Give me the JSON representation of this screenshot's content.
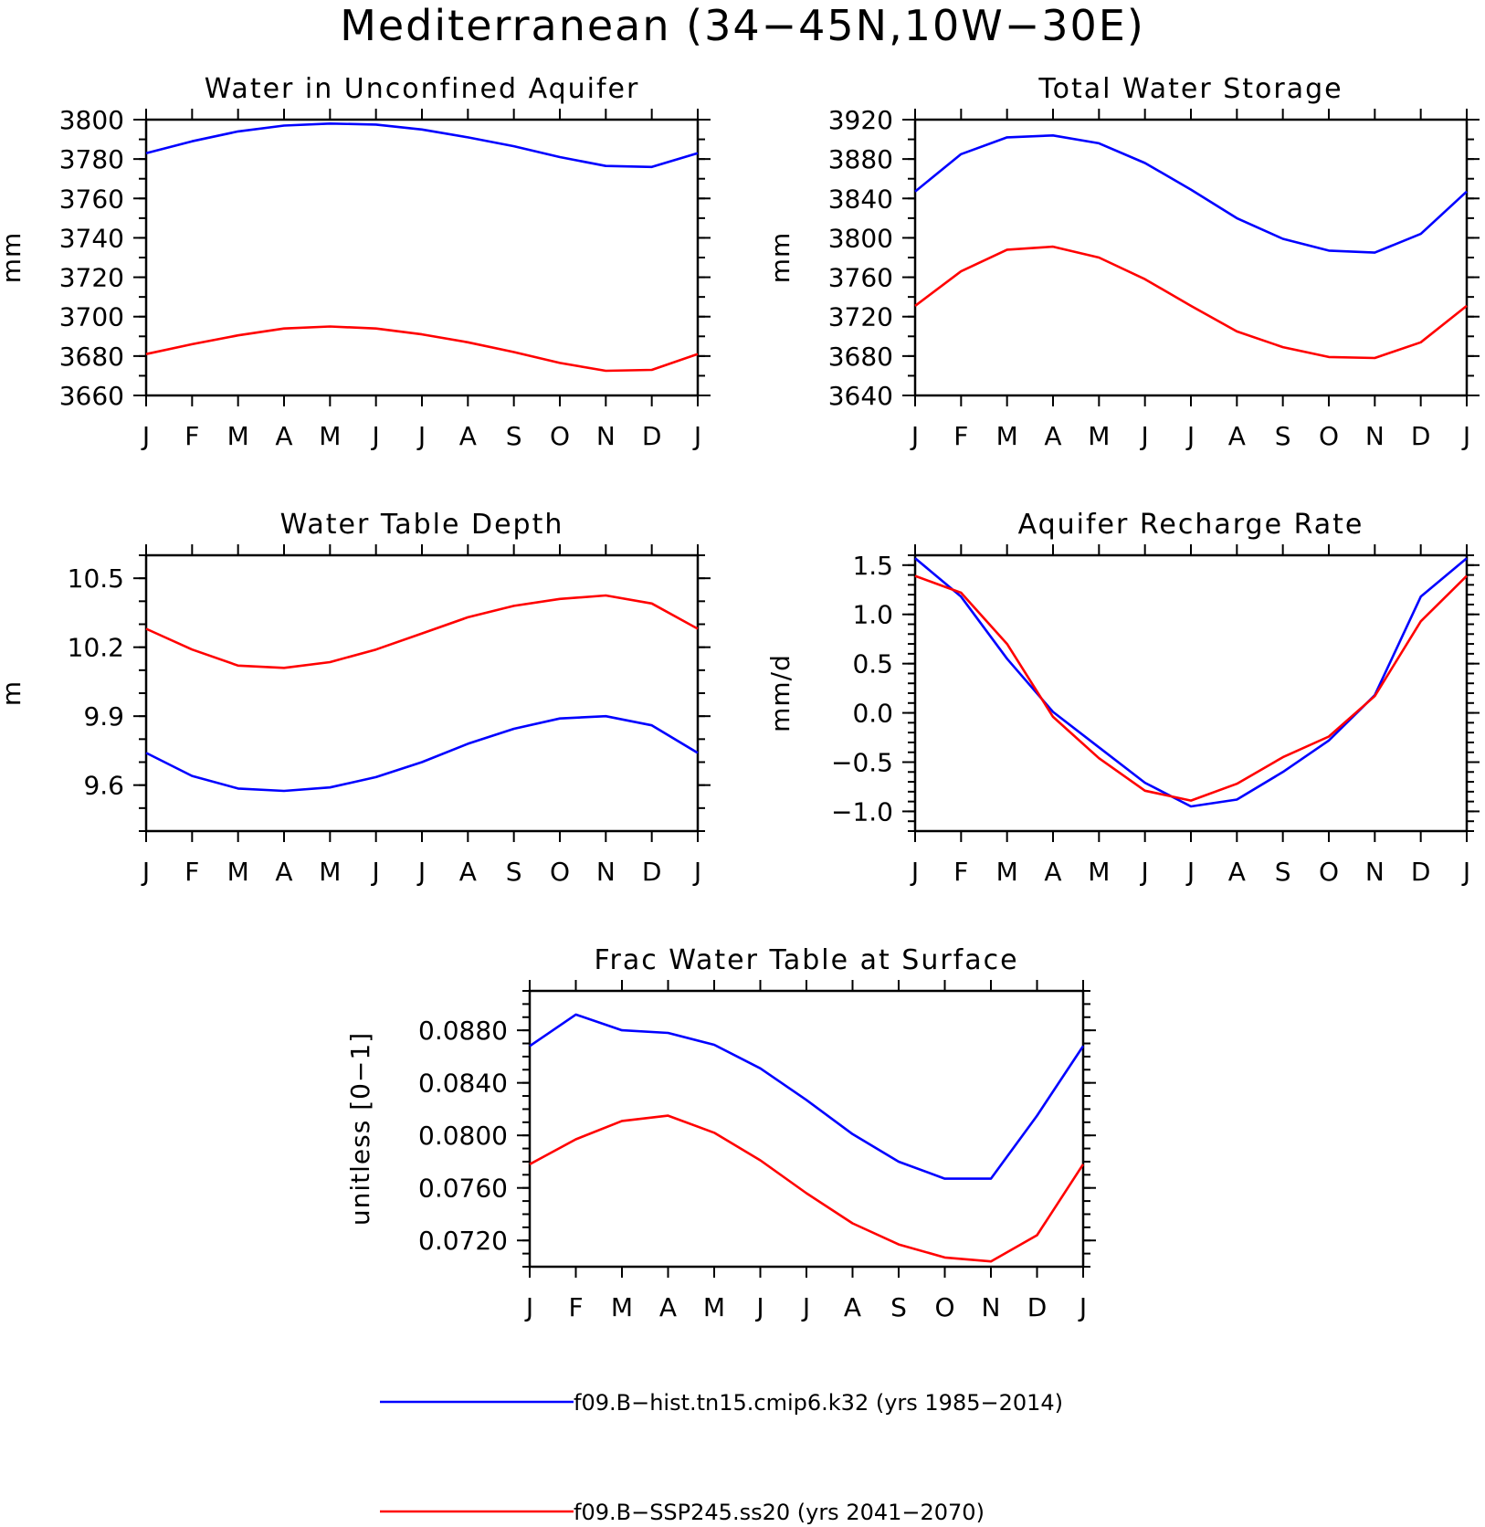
{
  "figure": {
    "title": "Mediterranean (34−45N,10W−30E)",
    "month_labels": [
      "J",
      "F",
      "M",
      "A",
      "M",
      "J",
      "J",
      "A",
      "S",
      "O",
      "N",
      "D",
      "J"
    ],
    "colors": {
      "hist": "#0000ff",
      "future": "#ff0000"
    }
  },
  "legend": [
    {
      "label": "f09.B−hist.tn15.cmip6.k32 (yrs 1985−2014)",
      "color": "#0000ff"
    },
    {
      "label": "f09.B−SSP245.ss20 (yrs 2041−2070)",
      "color": "#ff0000"
    }
  ],
  "chart_data": [
    {
      "type": "line",
      "title": "Water in Unconfined Aquifer",
      "ylabel": "mm",
      "ylim": [
        3660,
        3800
      ],
      "yticks": [
        3660,
        3680,
        3700,
        3720,
        3740,
        3760,
        3780,
        3800
      ],
      "ytick_labels": [
        "3660",
        "3680",
        "3700",
        "3720",
        "3740",
        "3760",
        "3780",
        "3800"
      ],
      "x": [
        "J",
        "F",
        "M",
        "A",
        "M",
        "J",
        "J",
        "A",
        "S",
        "O",
        "N",
        "D",
        "J"
      ],
      "series": [
        {
          "values": [
            3783,
            3789,
            3794,
            3797,
            3798,
            3797.5,
            3795,
            3791,
            3786.5,
            3781,
            3776.5,
            3776,
            3783
          ]
        },
        {
          "values": [
            3681,
            3686,
            3690.5,
            3694,
            3695,
            3694,
            3691,
            3687,
            3682,
            3676.5,
            3672.5,
            3673,
            3681
          ]
        }
      ]
    },
    {
      "type": "line",
      "title": "Total Water Storage",
      "ylabel": "mm",
      "ylim": [
        3640,
        3920
      ],
      "yticks": [
        3640,
        3680,
        3720,
        3760,
        3800,
        3840,
        3880,
        3920
      ],
      "ytick_labels": [
        "3640",
        "3680",
        "3720",
        "3760",
        "3800",
        "3840",
        "3880",
        "3920"
      ],
      "x": [
        "J",
        "F",
        "M",
        "A",
        "M",
        "J",
        "J",
        "A",
        "S",
        "O",
        "N",
        "D",
        "J"
      ],
      "series": [
        {
          "values": [
            3847,
            3885,
            3902,
            3904,
            3896,
            3876,
            3849,
            3820,
            3799,
            3787,
            3785,
            3804,
            3847
          ]
        },
        {
          "values": [
            3731,
            3766,
            3788,
            3791,
            3780,
            3758,
            3731,
            3705,
            3689,
            3679,
            3678,
            3694,
            3731
          ]
        }
      ]
    },
    {
      "type": "line",
      "title": "Water Table Depth",
      "ylabel": "m",
      "ylim": [
        9.4,
        10.6
      ],
      "yticks": [
        9.6,
        9.9,
        10.2,
        10.5
      ],
      "ytick_labels": [
        "9.6",
        "9.9",
        "10.2",
        "10.5"
      ],
      "x": [
        "J",
        "F",
        "M",
        "A",
        "M",
        "J",
        "J",
        "A",
        "S",
        "O",
        "N",
        "D",
        "J"
      ],
      "series": [
        {
          "values": [
            9.74,
            9.64,
            9.585,
            9.575,
            9.59,
            9.635,
            9.7,
            9.78,
            9.845,
            9.89,
            9.9,
            9.86,
            9.74
          ]
        },
        {
          "values": [
            10.28,
            10.19,
            10.12,
            10.11,
            10.135,
            10.19,
            10.26,
            10.33,
            10.38,
            10.41,
            10.425,
            10.39,
            10.28
          ]
        }
      ]
    },
    {
      "type": "line",
      "title": "Aquifer Recharge Rate",
      "ylabel": "mm/d",
      "ylim": [
        -1.2,
        1.6
      ],
      "yticks": [
        -1.0,
        -0.5,
        0.0,
        0.5,
        1.0,
        1.5
      ],
      "ytick_labels": [
        "−1.0",
        "−0.5",
        "0.0",
        "0.5",
        "1.0",
        "1.5"
      ],
      "x": [
        "J",
        "F",
        "M",
        "A",
        "M",
        "J",
        "J",
        "A",
        "S",
        "O",
        "N",
        "D",
        "J"
      ],
      "series": [
        {
          "values": [
            1.57,
            1.18,
            0.55,
            0.01,
            -0.35,
            -0.71,
            -0.95,
            -0.88,
            -0.6,
            -0.28,
            0.18,
            1.18,
            1.57
          ]
        },
        {
          "values": [
            1.39,
            1.22,
            0.7,
            -0.04,
            -0.46,
            -0.79,
            -0.89,
            -0.72,
            -0.45,
            -0.24,
            0.17,
            0.93,
            1.39
          ]
        }
      ]
    },
    {
      "type": "line",
      "title": "Frac Water Table at Surface",
      "ylabel": "unitless [0−1]",
      "ylim": [
        0.07,
        0.091
      ],
      "yticks": [
        0.072,
        0.076,
        0.08,
        0.084,
        0.088
      ],
      "ytick_labels": [
        "0.0720",
        "0.0760",
        "0.0800",
        "0.0840",
        "0.0880"
      ],
      "x": [
        "J",
        "F",
        "M",
        "A",
        "M",
        "J",
        "J",
        "A",
        "S",
        "O",
        "N",
        "D",
        "J"
      ],
      "series": [
        {
          "values": [
            0.0868,
            0.0892,
            0.088,
            0.0878,
            0.0869,
            0.0851,
            0.0827,
            0.0801,
            0.078,
            0.0767,
            0.0767,
            0.0815,
            0.0868
          ]
        },
        {
          "values": [
            0.0778,
            0.0797,
            0.0811,
            0.0815,
            0.0802,
            0.0781,
            0.0756,
            0.0733,
            0.0717,
            0.0707,
            0.0704,
            0.0724,
            0.0778
          ]
        }
      ]
    }
  ]
}
